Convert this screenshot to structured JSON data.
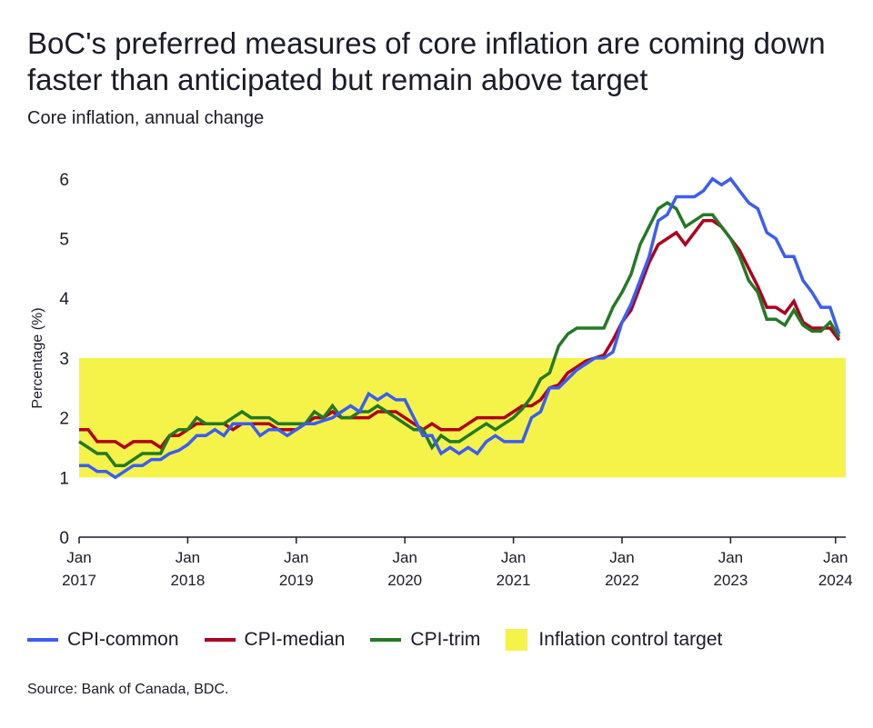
{
  "title": "BoC's preferred measures of core inflation are coming down faster than anticipated but remain above target",
  "subtitle": "Core inflation, annual change",
  "source": "Source: Bank of Canada, BDC.",
  "colors": {
    "cpi_common": "#3a5ef5",
    "cpi_median": "#b0001e",
    "cpi_trim": "#237a23",
    "target_band": "#f5f34a"
  },
  "chart_data": {
    "type": "line",
    "title": "BoC's preferred measures of core inflation are coming down faster than anticipated but remain above target",
    "subtitle": "Core inflation, annual change",
    "ylabel": "Percentage (%)",
    "xlabel": "",
    "ylim": [
      0,
      6
    ],
    "yticks": [
      "0",
      "1",
      "2",
      "3",
      "4",
      "5",
      "6"
    ],
    "x_start": "2017-01",
    "x_end": "2024-01",
    "x_frequency": "monthly",
    "xticks": [
      {
        "month": "Jan",
        "year": "2017"
      },
      {
        "month": "Jan",
        "year": "2018"
      },
      {
        "month": "Jan",
        "year": "2019"
      },
      {
        "month": "Jan",
        "year": "2020"
      },
      {
        "month": "Jan",
        "year": "2021"
      },
      {
        "month": "Jan",
        "year": "2022"
      },
      {
        "month": "Jan",
        "year": "2023"
      },
      {
        "month": "Jan",
        "year": "2024"
      }
    ],
    "grid": false,
    "legend_position": "bottom",
    "band": {
      "name": "Inflation control target",
      "from": 1,
      "to": 3
    },
    "series": [
      {
        "name": "CPI-common",
        "values": [
          1.2,
          1.2,
          1.1,
          1.1,
          1.0,
          1.1,
          1.2,
          1.2,
          1.3,
          1.3,
          1.4,
          1.45,
          1.55,
          1.7,
          1.7,
          1.8,
          1.7,
          1.9,
          1.9,
          1.9,
          1.7,
          1.8,
          1.8,
          1.7,
          1.8,
          1.9,
          1.9,
          1.95,
          2.0,
          2.1,
          2.2,
          2.1,
          2.4,
          2.3,
          2.4,
          2.3,
          2.3,
          2.0,
          1.7,
          1.7,
          1.4,
          1.5,
          1.4,
          1.5,
          1.4,
          1.6,
          1.7,
          1.6,
          1.6,
          1.6,
          2.0,
          2.1,
          2.5,
          2.5,
          2.65,
          2.8,
          2.9,
          3.0,
          3.0,
          3.1,
          3.6,
          3.9,
          4.3,
          4.7,
          5.3,
          5.4,
          5.7,
          5.7,
          5.7,
          5.8,
          6.0,
          5.9,
          6.0,
          5.8,
          5.6,
          5.5,
          5.1,
          5.0,
          4.7,
          4.7,
          4.3,
          4.1,
          3.85,
          3.85,
          3.4
        ]
      },
      {
        "name": "CPI-median",
        "values": [
          1.8,
          1.8,
          1.6,
          1.6,
          1.6,
          1.5,
          1.6,
          1.6,
          1.6,
          1.5,
          1.7,
          1.7,
          1.8,
          1.9,
          1.9,
          1.9,
          1.9,
          1.8,
          1.9,
          1.9,
          1.9,
          1.9,
          1.8,
          1.8,
          1.8,
          1.9,
          2.0,
          2.0,
          2.1,
          2.0,
          2.0,
          2.0,
          2.0,
          2.1,
          2.1,
          2.1,
          2.0,
          1.9,
          1.8,
          1.9,
          1.8,
          1.8,
          1.8,
          1.9,
          2.0,
          2.0,
          2.0,
          2.0,
          2.1,
          2.2,
          2.2,
          2.3,
          2.5,
          2.55,
          2.75,
          2.85,
          2.95,
          3.0,
          3.05,
          3.3,
          3.6,
          3.8,
          4.2,
          4.6,
          4.9,
          5.0,
          5.1,
          4.9,
          5.1,
          5.3,
          5.3,
          5.2,
          5.0,
          4.8,
          4.5,
          4.2,
          3.85,
          3.85,
          3.75,
          3.95,
          3.6,
          3.5,
          3.5,
          3.5,
          3.3
        ]
      },
      {
        "name": "CPI-trim",
        "values": [
          1.6,
          1.5,
          1.4,
          1.4,
          1.2,
          1.2,
          1.3,
          1.4,
          1.4,
          1.4,
          1.7,
          1.8,
          1.8,
          2.0,
          1.9,
          1.9,
          1.9,
          2.0,
          2.1,
          2.0,
          2.0,
          2.0,
          1.9,
          1.9,
          1.9,
          1.9,
          2.1,
          2.0,
          2.2,
          2.0,
          2.0,
          2.1,
          2.1,
          2.2,
          2.1,
          2.0,
          1.9,
          1.8,
          1.8,
          1.5,
          1.7,
          1.6,
          1.6,
          1.7,
          1.8,
          1.9,
          1.8,
          1.9,
          2.0,
          2.15,
          2.35,
          2.65,
          2.75,
          3.2,
          3.4,
          3.5,
          3.5,
          3.5,
          3.5,
          3.85,
          4.1,
          4.4,
          4.9,
          5.2,
          5.5,
          5.6,
          5.5,
          5.2,
          5.3,
          5.4,
          5.4,
          5.2,
          5.0,
          4.7,
          4.3,
          4.1,
          3.65,
          3.65,
          3.55,
          3.8,
          3.55,
          3.45,
          3.45,
          3.6,
          3.35
        ]
      }
    ]
  }
}
